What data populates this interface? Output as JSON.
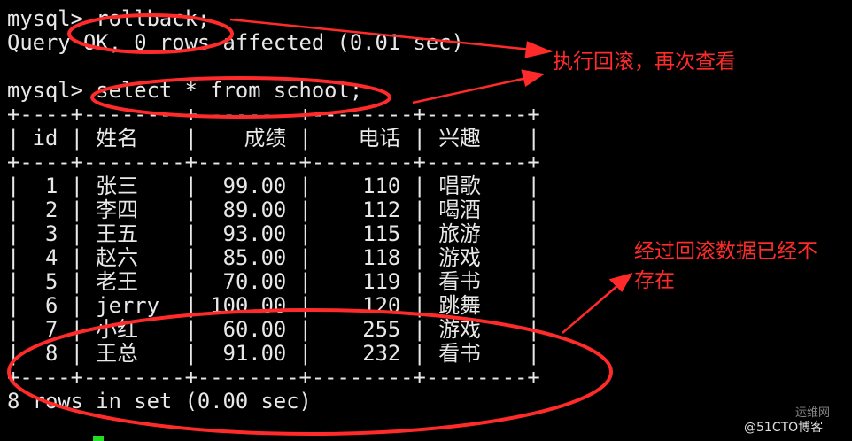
{
  "terminal": {
    "prompt": "mysql> ",
    "command1": "rollback;",
    "result1": "Query OK, 0 rows affected (0.01 sec)",
    "command2": "select * from school;",
    "border": "+----+--------+--------+--------+--------+",
    "headers": [
      "id",
      "姓名",
      "成绩",
      "电话",
      "兴趣"
    ],
    "rows": [
      [
        "1",
        "张三",
        "99.00",
        "110",
        "唱歌"
      ],
      [
        "2",
        "李四",
        "89.00",
        "112",
        "喝酒"
      ],
      [
        "3",
        "王五",
        "93.00",
        "115",
        "旅游"
      ],
      [
        "4",
        "赵六",
        "85.00",
        "118",
        "游戏"
      ],
      [
        "5",
        "老王",
        "70.00",
        "119",
        "看书"
      ],
      [
        "6",
        "jerry",
        "100.00",
        "120",
        "跳舞"
      ],
      [
        "7",
        "小红",
        "60.00",
        "255",
        "游戏"
      ],
      [
        "8",
        "王总",
        "91.00",
        "232",
        "看书"
      ]
    ],
    "summary": "8 rows in set (0.00 sec)"
  },
  "annotations": {
    "note1": "执行回滚，再次查看",
    "note2_line1": "经过回滚数据已经不",
    "note2_line2": "存在",
    "color": "#ff2a2a"
  },
  "watermark": {
    "text": "@51CTO博客",
    "logo_text": "运维网"
  },
  "colors": {
    "background": "#000000",
    "text": "#e8e8e8",
    "cursor": "#22dd22"
  }
}
